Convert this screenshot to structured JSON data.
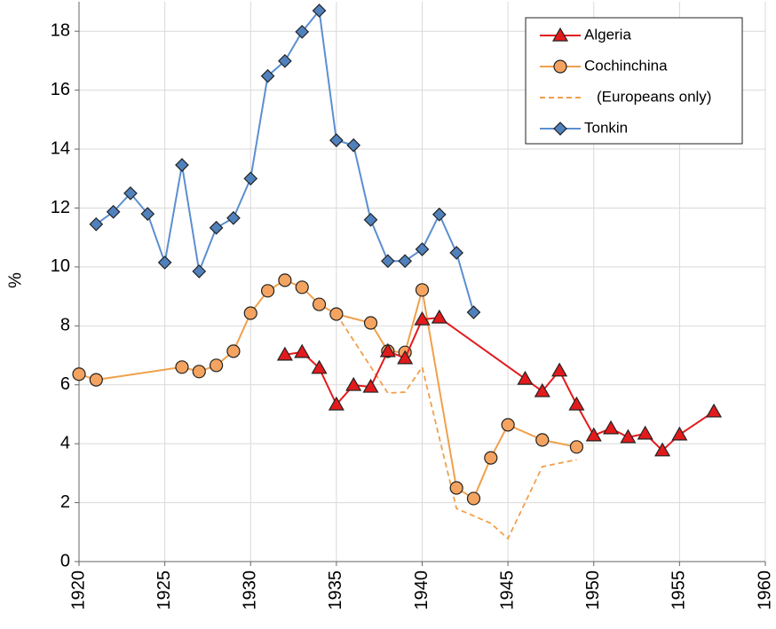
{
  "chart_data": {
    "type": "line",
    "y_label": "%",
    "xlim": [
      1920,
      1960
    ],
    "xticks": [
      1920,
      1925,
      1930,
      1935,
      1940,
      1945,
      1950,
      1955,
      1960
    ],
    "ylim": [
      0,
      19
    ],
    "yticks": [
      0,
      2,
      4,
      6,
      8,
      10,
      12,
      14,
      16,
      18
    ],
    "grid": true,
    "legend": "top-right",
    "series": [
      {
        "name": "Algeria",
        "color": "#e31a1c",
        "marker": "triangle",
        "marker_color": "#e31a1c",
        "x": [
          1932,
          1933,
          1934,
          1935,
          1936,
          1937,
          1938,
          1939,
          1940,
          1941,
          1946,
          1947,
          1948,
          1949,
          1950,
          1951,
          1952,
          1953,
          1954,
          1955,
          1957
        ],
        "values": [
          7.02,
          7.11,
          6.57,
          5.33,
          5.99,
          5.93,
          7.14,
          6.9,
          8.22,
          8.28,
          6.2,
          5.78,
          6.48,
          5.33,
          4.28,
          4.52,
          4.22,
          4.34,
          3.77,
          4.31,
          5.09
        ]
      },
      {
        "name": "Cochinchina",
        "color": "#f0a04b",
        "marker": "circle",
        "marker_color": "#f4a460",
        "x": [
          1920,
          1921,
          1926,
          1927,
          1928,
          1929,
          1930,
          1931,
          1932,
          1933,
          1934,
          1935,
          1937,
          1938,
          1939,
          1940,
          1942,
          1943,
          1944,
          1945,
          1947,
          1949
        ],
        "values": [
          6.36,
          6.17,
          6.6,
          6.45,
          6.66,
          7.14,
          8.43,
          9.19,
          9.55,
          9.31,
          8.73,
          8.4,
          8.1,
          7.14,
          7.1,
          9.22,
          2.5,
          2.14,
          3.52,
          4.64,
          4.13,
          3.89
        ]
      },
      {
        "name": "(Europeans only)",
        "color": "#f0a04b",
        "dashed": true,
        "x": [
          1935,
          1938,
          1939,
          1940,
          1942,
          1944,
          1945,
          1947,
          1949
        ],
        "values": [
          8.4,
          5.72,
          5.75,
          6.6,
          1.8,
          1.3,
          0.78,
          3.22,
          3.46
        ]
      },
      {
        "name": "Tonkin",
        "color": "#5b8fd0",
        "marker": "diamond",
        "marker_color": "#4f81bd",
        "x": [
          1921,
          1922,
          1923,
          1924,
          1925,
          1926,
          1927,
          1928,
          1929,
          1930,
          1931,
          1932,
          1933,
          1934,
          1935,
          1936,
          1937,
          1938,
          1939,
          1940,
          1941,
          1942,
          1943
        ],
        "values": [
          11.45,
          11.87,
          12.5,
          11.8,
          10.15,
          13.46,
          9.85,
          11.33,
          11.66,
          13.0,
          16.48,
          16.99,
          17.98,
          18.7,
          14.3,
          14.13,
          11.6,
          10.2,
          10.2,
          10.6,
          11.78,
          10.48,
          8.46
        ]
      }
    ]
  }
}
